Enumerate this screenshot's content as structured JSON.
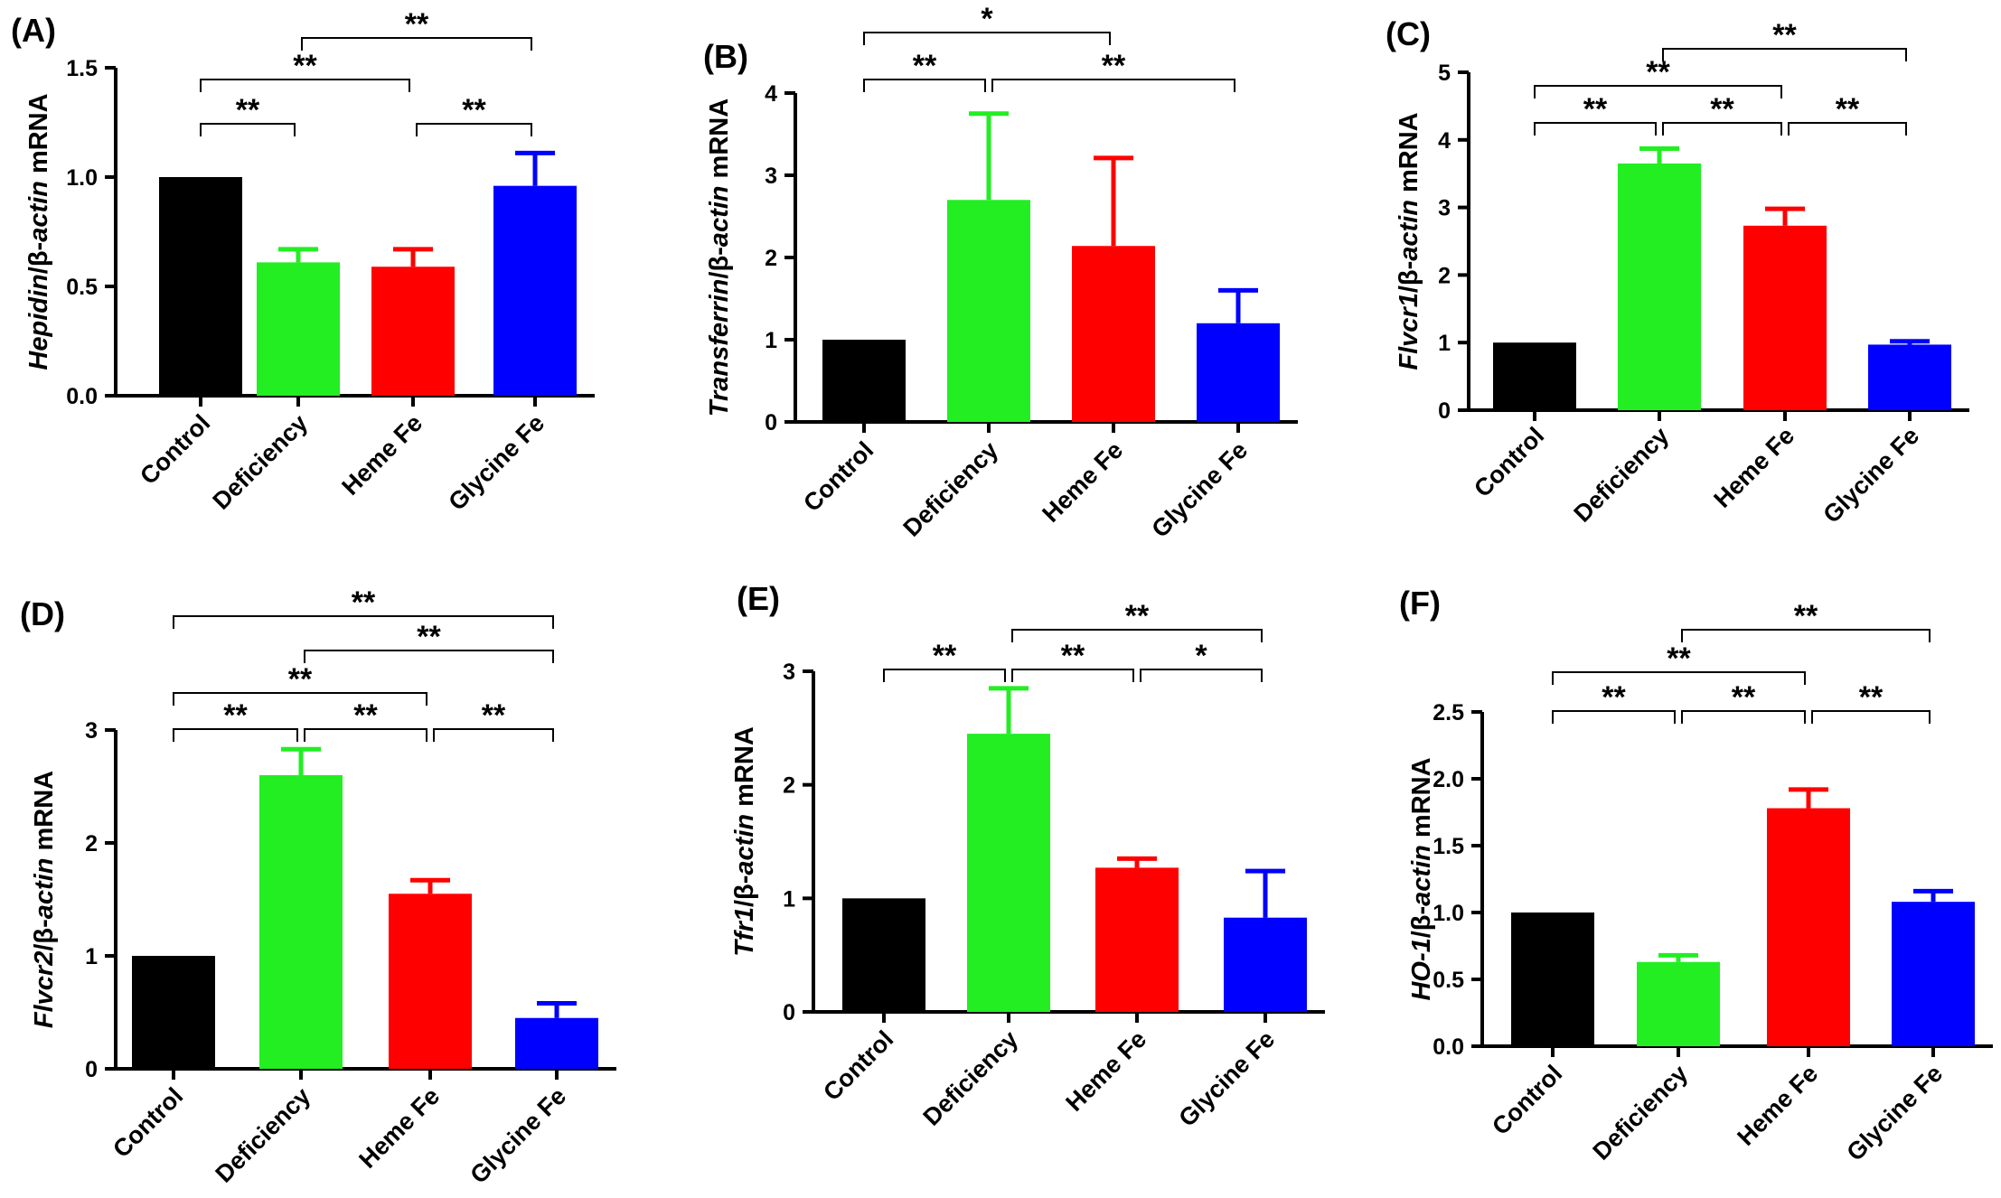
{
  "chart_data": [
    {
      "type": "bar",
      "panel": "(A)",
      "ylabel_gene": "Hepidin",
      "ylabel_rest": "/β-",
      "ylabel_ref": "actin",
      "ylabel_unit": " mRNA",
      "categories": [
        "Control",
        "Deficiency",
        "Heme Fe",
        "Glycine Fe"
      ],
      "values": [
        1.0,
        0.61,
        0.59,
        0.96
      ],
      "errors": [
        0,
        0.06,
        0.08,
        0.15
      ],
      "colors": [
        "#000000",
        "#22ee22",
        "#ff0000",
        "#0000ff"
      ],
      "ylim": [
        0,
        1.5
      ],
      "yticks": [
        "0.0",
        "0.5",
        "1.0",
        "1.5"
      ],
      "ytick_values": [
        0,
        0.5,
        1.0,
        1.5
      ],
      "significance": [
        {
          "from": 0,
          "to": 1,
          "label": "**"
        },
        {
          "from": 2,
          "to": 3,
          "label": "**"
        },
        {
          "from": 0,
          "to": 2,
          "label": "**"
        },
        {
          "from": 1,
          "to": 3,
          "label": "**"
        }
      ]
    },
    {
      "type": "bar",
      "panel": "(B)",
      "ylabel_gene": "Transferrin",
      "ylabel_rest": "/β-",
      "ylabel_ref": "actin",
      "ylabel_unit": " mRNA",
      "categories": [
        "Control",
        "Deficiency",
        "Heme Fe",
        "Glycine Fe"
      ],
      "values": [
        1.0,
        2.7,
        2.14,
        1.2
      ],
      "errors": [
        0,
        1.05,
        1.07,
        0.4
      ],
      "colors": [
        "#000000",
        "#22ee22",
        "#ff0000",
        "#0000ff"
      ],
      "ylim": [
        0,
        4
      ],
      "yticks": [
        "0",
        "1",
        "2",
        "3",
        "4"
      ],
      "ytick_values": [
        0,
        1,
        2,
        3,
        4
      ],
      "significance": [
        {
          "from": 0,
          "to": 1,
          "label": "**"
        },
        {
          "from": 1,
          "to": 3,
          "label": "**"
        },
        {
          "from": 0,
          "to": 2,
          "label": "*"
        }
      ]
    },
    {
      "type": "bar",
      "panel": "(C)",
      "ylabel_gene": "Flvcr1",
      "ylabel_rest": "/β-",
      "ylabel_ref": "actin",
      "ylabel_unit": " mRNA",
      "categories": [
        "Control",
        "Deficiency",
        "Heme Fe",
        "Glycine Fe"
      ],
      "values": [
        1.0,
        3.65,
        2.73,
        0.97
      ],
      "errors": [
        0,
        0.22,
        0.25,
        0.05
      ],
      "colors": [
        "#000000",
        "#22ee22",
        "#ff0000",
        "#0000ff"
      ],
      "ylim": [
        0,
        5
      ],
      "yticks": [
        "0",
        "1",
        "2",
        "3",
        "4",
        "5"
      ],
      "ytick_values": [
        0,
        1,
        2,
        3,
        4,
        5
      ],
      "significance": [
        {
          "from": 0,
          "to": 1,
          "label": "**"
        },
        {
          "from": 1,
          "to": 2,
          "label": "**"
        },
        {
          "from": 2,
          "to": 3,
          "label": "**"
        },
        {
          "from": 0,
          "to": 2,
          "label": "**"
        },
        {
          "from": 1,
          "to": 3,
          "label": "**"
        }
      ]
    },
    {
      "type": "bar",
      "panel": "(D)",
      "ylabel_gene": "Flvcr2",
      "ylabel_rest": "/β-",
      "ylabel_ref": "actin",
      "ylabel_unit": " mRNA",
      "categories": [
        "Control",
        "Deficiency",
        "Heme Fe",
        "Glycine Fe"
      ],
      "values": [
        1.0,
        2.6,
        1.55,
        0.45
      ],
      "errors": [
        0,
        0.23,
        0.12,
        0.13
      ],
      "colors": [
        "#000000",
        "#22ee22",
        "#ff0000",
        "#0000ff"
      ],
      "ylim": [
        0,
        3
      ],
      "yticks": [
        "0",
        "1",
        "2",
        "3"
      ],
      "ytick_values": [
        0,
        1,
        2,
        3
      ],
      "significance": [
        {
          "from": 0,
          "to": 1,
          "label": "**"
        },
        {
          "from": 1,
          "to": 2,
          "label": "**"
        },
        {
          "from": 2,
          "to": 3,
          "label": "**"
        },
        {
          "from": 0,
          "to": 2,
          "label": "**"
        },
        {
          "from": 1,
          "to": 3,
          "label": "**"
        },
        {
          "from": 0,
          "to": 3,
          "label": "**"
        }
      ]
    },
    {
      "type": "bar",
      "panel": "(E)",
      "ylabel_gene": "Tfr1",
      "ylabel_rest": "/β-",
      "ylabel_ref": "actin",
      "ylabel_unit": " mRNA",
      "categories": [
        "Control",
        "Deficiency",
        "Heme Fe",
        "Glycine Fe"
      ],
      "values": [
        1.0,
        2.45,
        1.27,
        0.83
      ],
      "errors": [
        0,
        0.4,
        0.08,
        0.41
      ],
      "colors": [
        "#000000",
        "#22ee22",
        "#ff0000",
        "#0000ff"
      ],
      "ylim": [
        0,
        3
      ],
      "yticks": [
        "0",
        "1",
        "2",
        "3"
      ],
      "ytick_values": [
        0,
        1,
        2,
        3
      ],
      "significance": [
        {
          "from": 0,
          "to": 1,
          "label": "**"
        },
        {
          "from": 1,
          "to": 2,
          "label": "**"
        },
        {
          "from": 2,
          "to": 3,
          "label": "*"
        },
        {
          "from": 1,
          "to": 3,
          "label": "**"
        }
      ]
    },
    {
      "type": "bar",
      "panel": "(F)",
      "ylabel_gene": "HO-1",
      "ylabel_rest": "/β-",
      "ylabel_ref": "actin",
      "ylabel_unit": " mRNA",
      "categories": [
        "Control",
        "Deficiency",
        "Heme Fe",
        "Glycine Fe"
      ],
      "values": [
        1.0,
        0.63,
        1.78,
        1.08
      ],
      "errors": [
        0,
        0.05,
        0.14,
        0.08
      ],
      "colors": [
        "#000000",
        "#22ee22",
        "#ff0000",
        "#0000ff"
      ],
      "ylim": [
        0,
        2.5
      ],
      "yticks": [
        "0.0",
        "0.5",
        "1.0",
        "1.5",
        "2.0",
        "2.5"
      ],
      "ytick_values": [
        0,
        0.5,
        1.0,
        1.5,
        2.0,
        2.5
      ],
      "significance": [
        {
          "from": 0,
          "to": 1,
          "label": "**"
        },
        {
          "from": 1,
          "to": 2,
          "label": "**"
        },
        {
          "from": 2,
          "to": 3,
          "label": "**"
        },
        {
          "from": 0,
          "to": 2,
          "label": "**"
        },
        {
          "from": 1,
          "to": 3,
          "label": "**"
        }
      ]
    }
  ]
}
